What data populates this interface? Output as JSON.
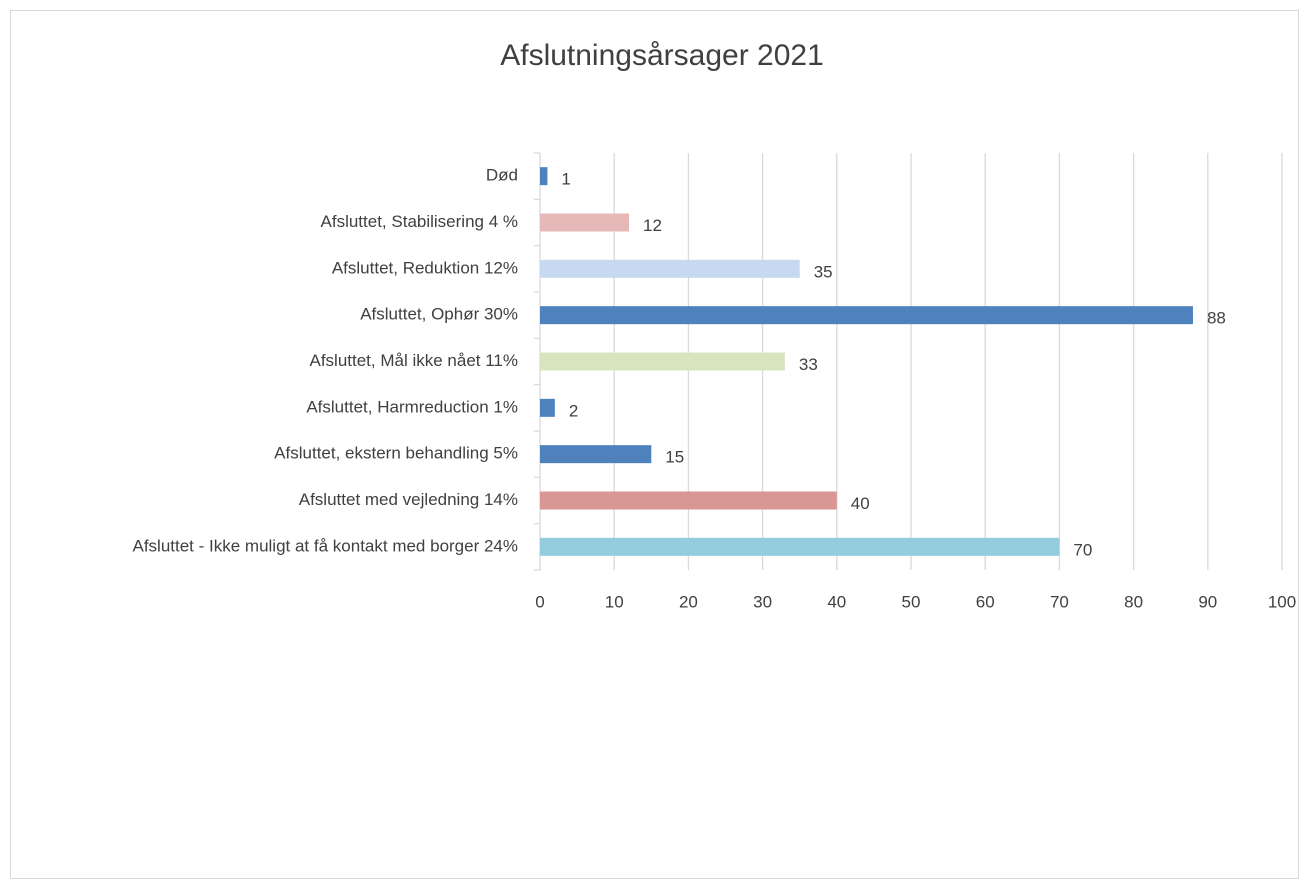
{
  "chart_data": {
    "type": "hbar",
    "title": "Afslutningsårsager 2021",
    "categories": [
      "Død",
      "Afsluttet, Stabilisering 4 %",
      "Afsluttet, Reduktion 12%",
      "Afsluttet, Ophør 30%",
      "Afsluttet, Mål ikke nået 11%",
      "Afsluttet, Harmreduction 1%",
      "Afsluttet, ekstern behandling 5%",
      "Afsluttet med vejledning 14%",
      "Afsluttet - Ikke muligt at få kontakt med borger 24%"
    ],
    "values": [
      1,
      12,
      35,
      88,
      33,
      2,
      15,
      40,
      70
    ],
    "colors": [
      "#4f81bd",
      "#e6b9b8",
      "#c6d9f1",
      "#4f81bd",
      "#d7e4bd",
      "#4f81bd",
      "#4f81bd",
      "#d99694",
      "#93cddd"
    ],
    "xlim": [
      0,
      100
    ],
    "xticks": [
      0,
      10,
      20,
      30,
      40,
      50,
      60,
      70,
      80,
      90,
      100
    ],
    "grid": true
  }
}
